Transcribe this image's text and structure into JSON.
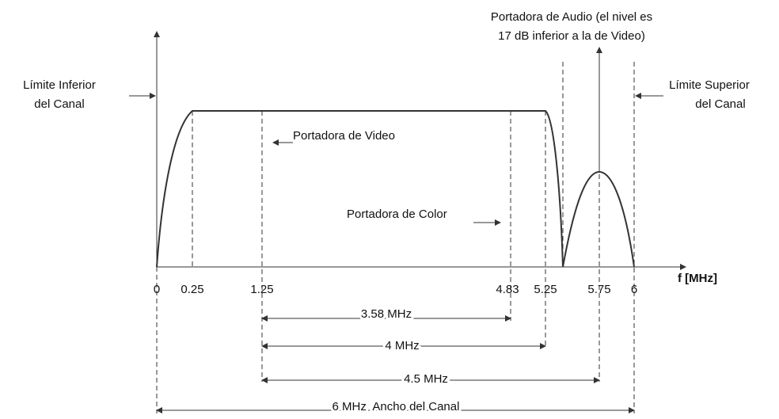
{
  "axis": {
    "x_label": "f [MHz]",
    "ticks": [
      "0",
      "0.25",
      "1.25",
      "4.83",
      "5.25",
      "5.75",
      "6"
    ]
  },
  "annotations": {
    "lower_limit": [
      "Límite Inferior",
      "del Canal"
    ],
    "upper_limit": [
      "Límite Superior",
      "del Canal"
    ],
    "video_carrier": "Portadora de Video",
    "color_carrier": "Portadora de Color",
    "audio_carrier": [
      "Portadora de Audio (el nivel es",
      "17 dB inferior a la de Video)"
    ]
  },
  "dimensions": [
    "3.58 MHz",
    "4 MHz",
    "4.5 MHz",
    "6 MHz  Ancho del Canal"
  ]
}
